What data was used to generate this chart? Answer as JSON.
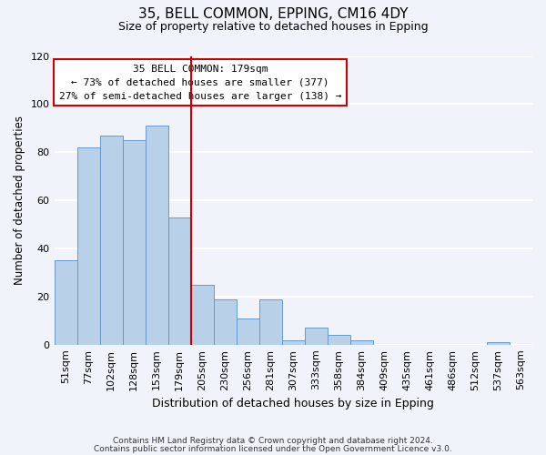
{
  "title": "35, BELL COMMON, EPPING, CM16 4DY",
  "subtitle": "Size of property relative to detached houses in Epping",
  "xlabel": "Distribution of detached houses by size in Epping",
  "ylabel": "Number of detached properties",
  "bar_labels": [
    "51sqm",
    "77sqm",
    "102sqm",
    "128sqm",
    "153sqm",
    "179sqm",
    "205sqm",
    "230sqm",
    "256sqm",
    "281sqm",
    "307sqm",
    "333sqm",
    "358sqm",
    "384sqm",
    "409sqm",
    "435sqm",
    "461sqm",
    "486sqm",
    "512sqm",
    "537sqm",
    "563sqm"
  ],
  "bar_values": [
    35,
    82,
    87,
    85,
    91,
    53,
    25,
    19,
    11,
    19,
    2,
    7,
    4,
    2,
    0,
    0,
    0,
    0,
    0,
    1,
    0
  ],
  "bar_color": "#b8d0e8",
  "bar_edge_color": "#6699cc",
  "vline_color": "#cc0000",
  "annotation_title": "35 BELL COMMON: 179sqm",
  "annotation_line1": "← 73% of detached houses are smaller (377)",
  "annotation_line2": "27% of semi-detached houses are larger (138) →",
  "annotation_box_color": "#ffffff",
  "annotation_box_edge_color": "#cc0000",
  "ylim": [
    0,
    120
  ],
  "yticks": [
    0,
    20,
    40,
    60,
    80,
    100,
    120
  ],
  "footnote1": "Contains HM Land Registry data © Crown copyright and database right 2024.",
  "footnote2": "Contains public sector information licensed under the Open Government Licence v3.0.",
  "background_color": "#f0f4fa",
  "grid_color": "#ffffff"
}
